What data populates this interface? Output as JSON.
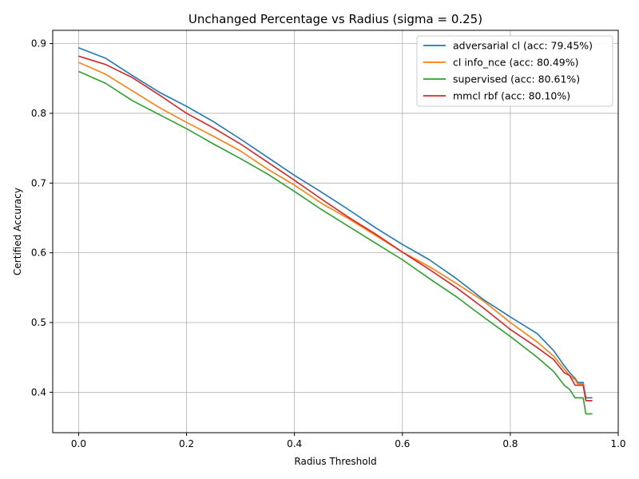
{
  "chart_data": {
    "type": "line",
    "title": "Unchanged Percentage vs Radius (sigma = 0.25)",
    "xlabel": "Radius Threshold",
    "ylabel": "Certified Accuracy",
    "xlim": [
      -0.048,
      1.0
    ],
    "ylim": [
      0.342,
      0.919
    ],
    "xticks": [
      0.0,
      0.2,
      0.4,
      0.6,
      0.8,
      1.0
    ],
    "xtick_labels": [
      "0.0",
      "0.2",
      "0.4",
      "0.6",
      "0.8",
      "1.0"
    ],
    "yticks": [
      0.4,
      0.5,
      0.6,
      0.7,
      0.8,
      0.9
    ],
    "ytick_labels": [
      "0.4",
      "0.5",
      "0.6",
      "0.7",
      "0.8",
      "0.9"
    ],
    "grid": true,
    "legend_position": "top-right",
    "series": [
      {
        "name": "adversarial cl (acc: 79.45%)",
        "color": "#1f77b4",
        "points": [
          [
            0.0,
            0.894
          ],
          [
            0.05,
            0.879
          ],
          [
            0.1,
            0.854
          ],
          [
            0.15,
            0.83
          ],
          [
            0.2,
            0.81
          ],
          [
            0.25,
            0.788
          ],
          [
            0.3,
            0.763
          ],
          [
            0.35,
            0.737
          ],
          [
            0.4,
            0.711
          ],
          [
            0.45,
            0.687
          ],
          [
            0.5,
            0.662
          ],
          [
            0.55,
            0.636
          ],
          [
            0.6,
            0.612
          ],
          [
            0.65,
            0.59
          ],
          [
            0.7,
            0.563
          ],
          [
            0.75,
            0.533
          ],
          [
            0.8,
            0.508
          ],
          [
            0.85,
            0.484
          ],
          [
            0.88,
            0.46
          ],
          [
            0.9,
            0.438
          ],
          [
            0.91,
            0.428
          ],
          [
            0.92,
            0.42
          ],
          [
            0.925,
            0.414
          ],
          [
            0.935,
            0.414
          ],
          [
            0.94,
            0.392
          ],
          [
            0.952,
            0.392
          ]
        ]
      },
      {
        "name": "cl info_nce (acc: 80.49%)",
        "color": "#ff7f0e",
        "points": [
          [
            0.0,
            0.873
          ],
          [
            0.05,
            0.856
          ],
          [
            0.1,
            0.832
          ],
          [
            0.15,
            0.808
          ],
          [
            0.2,
            0.787
          ],
          [
            0.25,
            0.767
          ],
          [
            0.3,
            0.746
          ],
          [
            0.35,
            0.72
          ],
          [
            0.4,
            0.697
          ],
          [
            0.45,
            0.671
          ],
          [
            0.5,
            0.649
          ],
          [
            0.55,
            0.625
          ],
          [
            0.6,
            0.601
          ],
          [
            0.65,
            0.58
          ],
          [
            0.7,
            0.556
          ],
          [
            0.75,
            0.531
          ],
          [
            0.8,
            0.5
          ],
          [
            0.85,
            0.472
          ],
          [
            0.88,
            0.452
          ],
          [
            0.9,
            0.433
          ],
          [
            0.91,
            0.424
          ],
          [
            0.92,
            0.418
          ],
          [
            0.925,
            0.412
          ],
          [
            0.935,
            0.412
          ],
          [
            0.94,
            0.388
          ],
          [
            0.952,
            0.388
          ]
        ]
      },
      {
        "name": "supervised (acc: 80.61%)",
        "color": "#2ca02c",
        "points": [
          [
            0.0,
            0.86
          ],
          [
            0.05,
            0.843
          ],
          [
            0.1,
            0.818
          ],
          [
            0.15,
            0.798
          ],
          [
            0.2,
            0.778
          ],
          [
            0.25,
            0.756
          ],
          [
            0.3,
            0.735
          ],
          [
            0.35,
            0.713
          ],
          [
            0.4,
            0.688
          ],
          [
            0.45,
            0.662
          ],
          [
            0.5,
            0.638
          ],
          [
            0.55,
            0.614
          ],
          [
            0.6,
            0.59
          ],
          [
            0.65,
            0.563
          ],
          [
            0.7,
            0.537
          ],
          [
            0.75,
            0.508
          ],
          [
            0.8,
            0.48
          ],
          [
            0.85,
            0.45
          ],
          [
            0.88,
            0.43
          ],
          [
            0.9,
            0.41
          ],
          [
            0.91,
            0.404
          ],
          [
            0.92,
            0.392
          ],
          [
            0.935,
            0.392
          ],
          [
            0.94,
            0.369
          ],
          [
            0.952,
            0.369
          ]
        ]
      },
      {
        "name": "mmcl rbf (acc: 80.10%)",
        "color": "#d62728",
        "points": [
          [
            0.0,
            0.882
          ],
          [
            0.05,
            0.87
          ],
          [
            0.1,
            0.851
          ],
          [
            0.15,
            0.826
          ],
          [
            0.2,
            0.8
          ],
          [
            0.25,
            0.779
          ],
          [
            0.3,
            0.756
          ],
          [
            0.35,
            0.73
          ],
          [
            0.4,
            0.704
          ],
          [
            0.45,
            0.677
          ],
          [
            0.5,
            0.651
          ],
          [
            0.55,
            0.627
          ],
          [
            0.6,
            0.601
          ],
          [
            0.65,
            0.576
          ],
          [
            0.7,
            0.55
          ],
          [
            0.75,
            0.521
          ],
          [
            0.8,
            0.49
          ],
          [
            0.85,
            0.464
          ],
          [
            0.88,
            0.447
          ],
          [
            0.9,
            0.428
          ],
          [
            0.91,
            0.424
          ],
          [
            0.92,
            0.41
          ],
          [
            0.935,
            0.41
          ],
          [
            0.94,
            0.388
          ],
          [
            0.952,
            0.388
          ]
        ]
      }
    ]
  }
}
